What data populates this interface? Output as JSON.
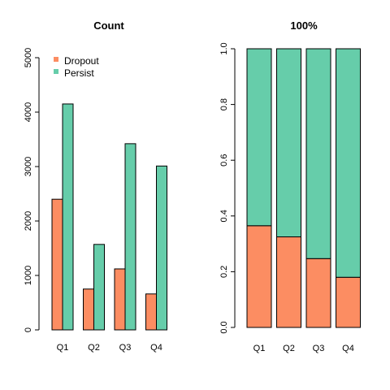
{
  "colors": {
    "dropout": "#FC8D62",
    "persist": "#66CDAA",
    "stroke": "#000000"
  },
  "legend": {
    "items": [
      {
        "name": "Dropout",
        "color": "#FC8D62"
      },
      {
        "name": "Persist",
        "color": "#66CDAA"
      }
    ]
  },
  "chart_data": [
    {
      "type": "bar",
      "title": "Count",
      "xlabel": "",
      "ylabel": "",
      "categories": [
        "Q1",
        "Q2",
        "Q3",
        "Q4"
      ],
      "series": [
        {
          "name": "Dropout",
          "values": [
            2400,
            750,
            1120,
            660
          ]
        },
        {
          "name": "Persist",
          "values": [
            4150,
            1570,
            3420,
            3010
          ]
        }
      ],
      "ylim": [
        0,
        5000
      ],
      "yticks": [
        "0",
        "1000",
        "2000",
        "3000",
        "4000",
        "5000"
      ],
      "grouping": "grouped",
      "legend_position": "top-left",
      "grid": false
    },
    {
      "type": "bar",
      "title": "100%",
      "xlabel": "",
      "ylabel": "",
      "categories": [
        "Q1",
        "Q2",
        "Q3",
        "Q4"
      ],
      "series": [
        {
          "name": "Dropout",
          "values": [
            0.365,
            0.325,
            0.247,
            0.18
          ]
        },
        {
          "name": "Persist",
          "values": [
            0.635,
            0.675,
            0.753,
            0.82
          ]
        }
      ],
      "ylim": [
        0,
        1
      ],
      "yticks": [
        "0.0",
        "0.2",
        "0.4",
        "0.6",
        "0.8",
        "1.0"
      ],
      "grouping": "stacked",
      "grid": false
    }
  ]
}
